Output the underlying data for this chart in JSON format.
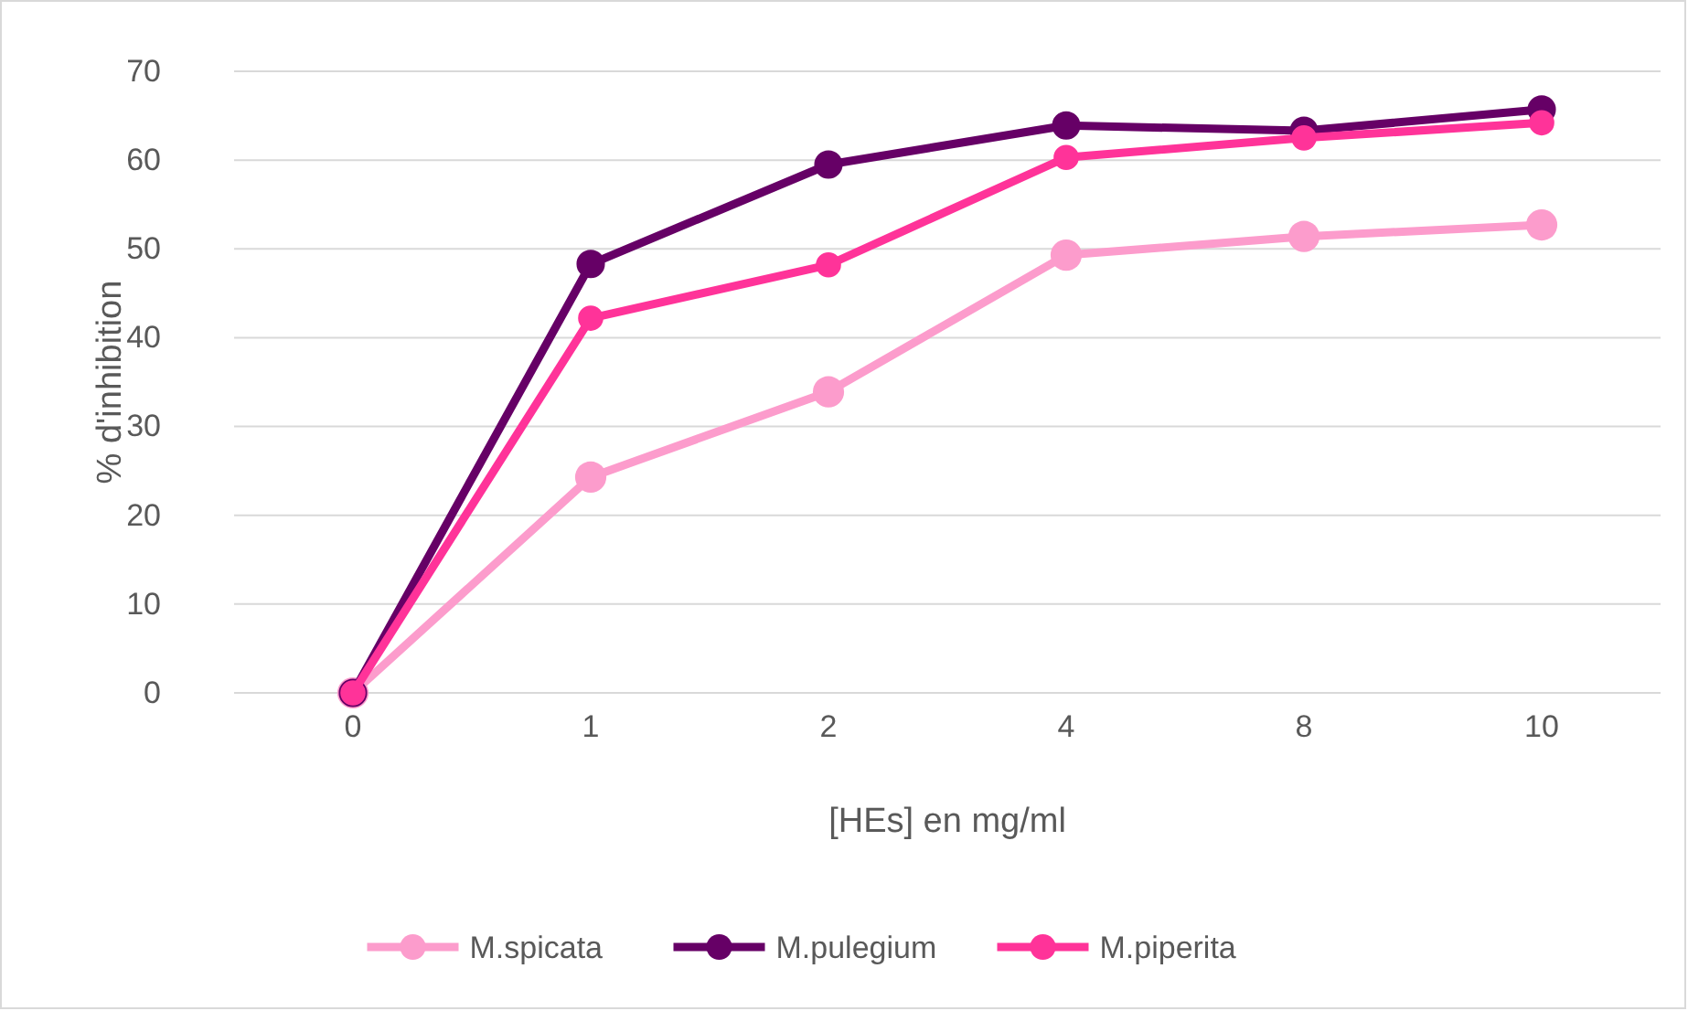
{
  "chart_data": {
    "type": "line",
    "xlabel": "[HEs] en mg/ml",
    "ylabel": "% d'inhibition",
    "categories": [
      "0",
      "1",
      "2",
      "4",
      "8",
      "10"
    ],
    "series": [
      {
        "name": "M.spicata",
        "color": "#fc9ccc",
        "values": [
          0,
          24.3,
          33.9,
          49.3,
          51.4,
          52.7
        ]
      },
      {
        "name": "M.pulegium",
        "color": "#660066",
        "values": [
          0,
          48.3,
          59.5,
          63.9,
          63.3,
          65.7
        ]
      },
      {
        "name": "M.piperita",
        "color": "#ff3399",
        "values": [
          0,
          42.2,
          48.2,
          60.3,
          62.5,
          64.2
        ]
      }
    ],
    "ylim": [
      0,
      70
    ],
    "yticks": [
      0,
      10,
      20,
      30,
      40,
      50,
      60,
      70
    ],
    "grid": "y",
    "legend": "bottom",
    "marker": "circle",
    "line_style": "solid"
  }
}
